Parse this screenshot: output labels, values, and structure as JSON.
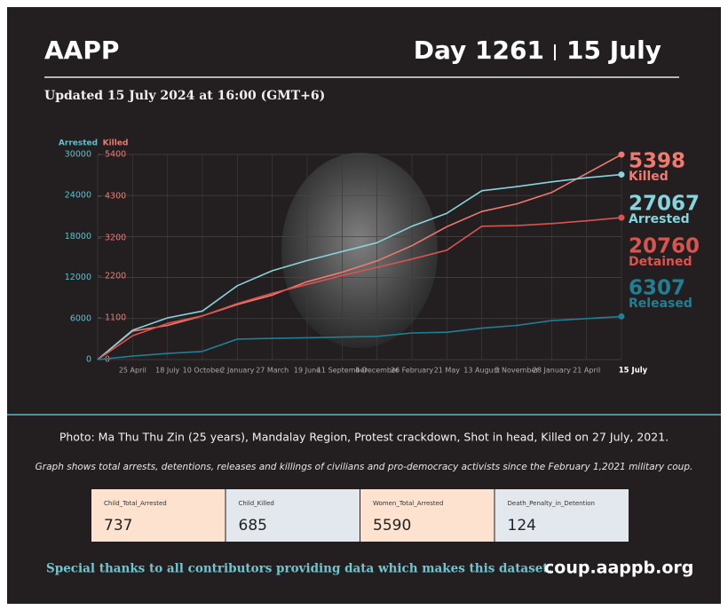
{
  "header": {
    "title": "AAPP",
    "day": "Day 1261",
    "date": "15 July",
    "subtitle": "Updated 15 July 2024 at 16:00 (GMT+6)"
  },
  "chart_data": {
    "type": "line",
    "y_label": "Arrested",
    "y2_label": "Killed",
    "categories": [
      null,
      "25 April",
      "18 July",
      "10 October",
      "2 January",
      "27 March",
      "19 June",
      "11 September",
      "4 December",
      "26 February",
      "21 May",
      "13 August",
      "5 November",
      "28 January",
      "21 April",
      "15 July"
    ],
    "ylim": [
      0,
      30000
    ],
    "yticks": [
      0,
      6000,
      12000,
      18000,
      24000,
      30000
    ],
    "y2lim": [
      0,
      5400
    ],
    "y2ticks": [
      0,
      1100,
      2200,
      3200,
      4300,
      5400
    ],
    "grid": true,
    "series": [
      {
        "name": "Killed",
        "color": "#ef7a70",
        "axis": "y2",
        "values": [
          0,
          750,
          900,
          1150,
          1450,
          1700,
          2050,
          2300,
          2600,
          3000,
          3500,
          3900,
          4100,
          4400,
          4900,
          5398
        ]
      },
      {
        "name": "Arrested",
        "color": "#86d4dc",
        "values": [
          0,
          4300,
          6100,
          7100,
          10800,
          13000,
          14500,
          15800,
          17100,
          19500,
          21400,
          24700,
          25300,
          26000,
          26600,
          27067
        ]
      },
      {
        "name": "Detained",
        "color": "#d9534f",
        "values": [
          0,
          3500,
          5300,
          6400,
          8200,
          9700,
          11000,
          12300,
          13500,
          14700,
          16000,
          19500,
          19600,
          19900,
          20300,
          20760
        ]
      },
      {
        "name": "Released",
        "color": "#1f7f94",
        "values": [
          0,
          500,
          900,
          1200,
          3000,
          3100,
          3200,
          3300,
          3400,
          3900,
          4000,
          4600,
          5000,
          5700,
          6000,
          6307
        ]
      }
    ]
  },
  "caption": "Photo: Ma Thu Thu Zin (25 years), Mandalay Region, Protest crackdown, Shot in head, Killed on 27 July, 2021.",
  "note": "Graph shows total arrests, detentions, releases and killings of civilians and pro-democracy activists since the February 1,2021 military coup.",
  "stats": [
    {
      "label": "Child_Total_Arrested",
      "value": 737
    },
    {
      "label": "Child_Killed",
      "value": 685
    },
    {
      "label": "Women_Total_Arrested",
      "value": 5590
    },
    {
      "label": "Death_Penalty_in_Detention",
      "value": 124
    }
  ],
  "footer": {
    "thanks": "Special thanks to all contributors providing data which makes this dataset.",
    "url": "coup.aappb.org"
  }
}
